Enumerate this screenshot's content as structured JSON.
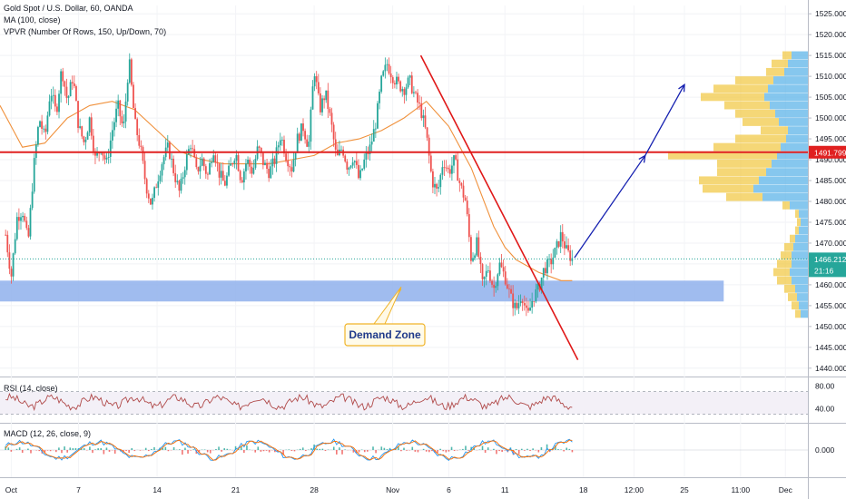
{
  "header": {
    "symbol": "Gold Spot / U.S. Dollar, 60, OANDA",
    "ma": "MA (100, close)",
    "vpvr": "VPVR (Number Of Rows, 150, Up/Down, 70)"
  },
  "colors": {
    "bull": "#26a69a",
    "bear": "#ef5350",
    "ma": "#f0913c",
    "resistance": "#e02020",
    "trendline": "#e01818",
    "arrow": "#1520b0",
    "demand": "#8fb0ec",
    "vp_up": "#5eb4e8",
    "vp_down": "#f2c94a",
    "last": "#26a69a",
    "rsi": "#b04a4a",
    "macd": "#2196f3",
    "signal": "#ff6d00"
  },
  "annotations": {
    "demand_zone_label": "Demand Zone",
    "resistance_price_label": "1491.799",
    "last_price_label": "1466.212",
    "countdown_label": "21:16"
  },
  "rsi": {
    "label": "RSI (14, close)",
    "ticks": [
      "80.00",
      "40.00"
    ]
  },
  "macd": {
    "label": "MACD (12, 26, close, 9)",
    "ticks": [
      "0.000"
    ]
  },
  "chart_data": {
    "type": "candlestick",
    "title": "Gold Spot / U.S. Dollar, 60, OANDA",
    "ylim": [
      1438,
      1527
    ],
    "y_ticks": [
      "1525.000",
      "1520.000",
      "1515.000",
      "1510.000",
      "1505.000",
      "1500.000",
      "1495.000",
      "1490.000",
      "1485.000",
      "1480.000",
      "1475.000",
      "1470.000",
      "1465.000",
      "1460.000",
      "1455.000",
      "1450.000",
      "1445.000",
      "1440.000"
    ],
    "x_ticks": [
      {
        "label": "Oct",
        "t": 1
      },
      {
        "label": "7",
        "t": 7
      },
      {
        "label": "14",
        "t": 14
      },
      {
        "label": "21",
        "t": 21
      },
      {
        "label": "28",
        "t": 28
      },
      {
        "label": "Nov",
        "t": 35
      },
      {
        "label": "6",
        "t": 40
      },
      {
        "label": "11",
        "t": 45
      },
      {
        "label": "18",
        "t": 52
      },
      {
        "label": "12:00",
        "t": 56.5
      },
      {
        "label": "25",
        "t": 61
      },
      {
        "label": "11:00",
        "t": 66
      },
      {
        "label": "Dec",
        "t": 70
      }
    ],
    "price_path": [
      [
        0.5,
        1472
      ],
      [
        1,
        1462
      ],
      [
        1.5,
        1476
      ],
      [
        2,
        1478
      ],
      [
        2.5,
        1470
      ],
      [
        3,
        1488
      ],
      [
        3.5,
        1500
      ],
      [
        4,
        1495
      ],
      [
        4.5,
        1507
      ],
      [
        5,
        1501
      ],
      [
        5.5,
        1512
      ],
      [
        6,
        1504
      ],
      [
        6.5,
        1510
      ],
      [
        7,
        1498
      ],
      [
        7.5,
        1494
      ],
      [
        8,
        1500
      ],
      [
        8.5,
        1490
      ],
      [
        9,
        1493
      ],
      [
        9.5,
        1489
      ],
      [
        10,
        1497
      ],
      [
        10.5,
        1503
      ],
      [
        11,
        1497
      ],
      [
        11.5,
        1514
      ],
      [
        12,
        1499
      ],
      [
        12.5,
        1493
      ],
      [
        13,
        1484
      ],
      [
        13.5,
        1479
      ],
      [
        14,
        1485
      ],
      [
        14.5,
        1490
      ],
      [
        15,
        1493
      ],
      [
        15.5,
        1487
      ],
      [
        16,
        1482
      ],
      [
        16.5,
        1489
      ],
      [
        17,
        1494
      ],
      [
        17.5,
        1487
      ],
      [
        18,
        1490
      ],
      [
        18.5,
        1486
      ],
      [
        19,
        1493
      ],
      [
        19.5,
        1487
      ],
      [
        20,
        1484
      ],
      [
        20.5,
        1488
      ],
      [
        21,
        1492
      ],
      [
        21.5,
        1485
      ],
      [
        22,
        1490
      ],
      [
        22.5,
        1487
      ],
      [
        23,
        1493
      ],
      [
        23.5,
        1489
      ],
      [
        24,
        1487
      ],
      [
        24.5,
        1490
      ],
      [
        25,
        1496
      ],
      [
        25.5,
        1491
      ],
      [
        26,
        1488
      ],
      [
        26.5,
        1495
      ],
      [
        27,
        1498
      ],
      [
        27.5,
        1493
      ],
      [
        28,
        1512
      ],
      [
        28.5,
        1502
      ],
      [
        29,
        1506
      ],
      [
        29.5,
        1499
      ],
      [
        30,
        1490
      ],
      [
        30.5,
        1493
      ],
      [
        31,
        1488
      ],
      [
        31.5,
        1491
      ],
      [
        32,
        1485
      ],
      [
        32.5,
        1490
      ],
      [
        33,
        1493
      ],
      [
        33.5,
        1499
      ],
      [
        34,
        1509
      ],
      [
        34.5,
        1513
      ],
      [
        35,
        1510
      ],
      [
        35.5,
        1508
      ],
      [
        36,
        1507
      ],
      [
        36.5,
        1509
      ],
      [
        37,
        1505
      ],
      [
        37.5,
        1502
      ],
      [
        38,
        1496
      ],
      [
        38.5,
        1485
      ],
      [
        39,
        1482
      ],
      [
        39.5,
        1490
      ],
      [
        40,
        1487
      ],
      [
        40.5,
        1490
      ],
      [
        41,
        1484
      ],
      [
        41.5,
        1480
      ],
      [
        42,
        1466
      ],
      [
        42.5,
        1470
      ],
      [
        43,
        1460
      ],
      [
        43.5,
        1464
      ],
      [
        44,
        1459
      ],
      [
        44.5,
        1465
      ],
      [
        45,
        1462
      ],
      [
        45.5,
        1457
      ],
      [
        46,
        1454
      ],
      [
        46.5,
        1458
      ],
      [
        47,
        1452
      ],
      [
        47.5,
        1457
      ],
      [
        48,
        1459
      ],
      [
        48.5,
        1464
      ],
      [
        49,
        1465
      ],
      [
        49.5,
        1468
      ],
      [
        50,
        1472
      ],
      [
        50.5,
        1468
      ],
      [
        51,
        1466.2
      ]
    ],
    "ma_path": [
      [
        0,
        1503
      ],
      [
        2,
        1493
      ],
      [
        4,
        1494
      ],
      [
        6,
        1500
      ],
      [
        8,
        1503
      ],
      [
        10,
        1504
      ],
      [
        12,
        1502
      ],
      [
        14,
        1497
      ],
      [
        16,
        1492
      ],
      [
        18,
        1490
      ],
      [
        20,
        1489
      ],
      [
        22,
        1489
      ],
      [
        24,
        1489
      ],
      [
        26,
        1490
      ],
      [
        28,
        1491
      ],
      [
        30,
        1494
      ],
      [
        32,
        1495
      ],
      [
        34,
        1497
      ],
      [
        36,
        1500
      ],
      [
        38,
        1504
      ],
      [
        40,
        1498
      ],
      [
        42,
        1488
      ],
      [
        43,
        1481
      ],
      [
        44,
        1474
      ],
      [
        45,
        1469
      ],
      [
        46,
        1466
      ],
      [
        48,
        1463
      ],
      [
        50,
        1461
      ],
      [
        51,
        1461
      ]
    ],
    "demand_zone": {
      "low": 1456,
      "high": 1461,
      "t_start": 0,
      "t_end": 64.5
    },
    "resistance_level": 1491.799,
    "last_price": 1466.212,
    "trendline": [
      [
        37.5,
        1515
      ],
      [
        51.5,
        1442
      ]
    ],
    "projection_arrow": [
      [
        51.2,
        1466.5
      ],
      [
        57.5,
        1491
      ],
      [
        61,
        1508
      ]
    ],
    "volume_profile_rows": [
      {
        "price": 1515,
        "up": 18,
        "down": 10
      },
      {
        "price": 1513,
        "up": 22,
        "down": 18
      },
      {
        "price": 1511,
        "up": 26,
        "down": 20
      },
      {
        "price": 1509,
        "up": 38,
        "down": 42
      },
      {
        "price": 1507,
        "up": 44,
        "down": 60
      },
      {
        "price": 1505,
        "up": 48,
        "down": 70
      },
      {
        "price": 1503,
        "up": 42,
        "down": 50
      },
      {
        "price": 1501,
        "up": 36,
        "down": 44
      },
      {
        "price": 1499,
        "up": 32,
        "down": 40
      },
      {
        "price": 1497,
        "up": 22,
        "down": 30
      },
      {
        "price": 1495,
        "up": 24,
        "down": 56
      },
      {
        "price": 1493,
        "up": 30,
        "down": 74
      },
      {
        "price": 1491,
        "up": 34,
        "down": 120
      },
      {
        "price": 1489,
        "up": 40,
        "down": 60
      },
      {
        "price": 1487,
        "up": 46,
        "down": 54
      },
      {
        "price": 1485,
        "up": 54,
        "down": 66
      },
      {
        "price": 1483,
        "up": 60,
        "down": 56
      },
      {
        "price": 1481,
        "up": 50,
        "down": 40
      },
      {
        "price": 1479,
        "up": 20,
        "down": 8
      },
      {
        "price": 1477,
        "up": 10,
        "down": 4
      },
      {
        "price": 1475,
        "up": 8,
        "down": 4
      },
      {
        "price": 1473,
        "up": 10,
        "down": 4
      },
      {
        "price": 1471,
        "up": 14,
        "down": 6
      },
      {
        "price": 1469,
        "up": 16,
        "down": 10
      },
      {
        "price": 1467,
        "up": 18,
        "down": 12
      },
      {
        "price": 1465,
        "up": 18,
        "down": 16
      },
      {
        "price": 1463,
        "up": 20,
        "down": 18
      },
      {
        "price": 1461,
        "up": 18,
        "down": 16
      },
      {
        "price": 1459,
        "up": 14,
        "down": 12
      },
      {
        "price": 1457,
        "up": 12,
        "down": 10
      },
      {
        "price": 1455,
        "up": 10,
        "down": 8
      },
      {
        "price": 1453,
        "up": 8,
        "down": 6
      }
    ]
  }
}
